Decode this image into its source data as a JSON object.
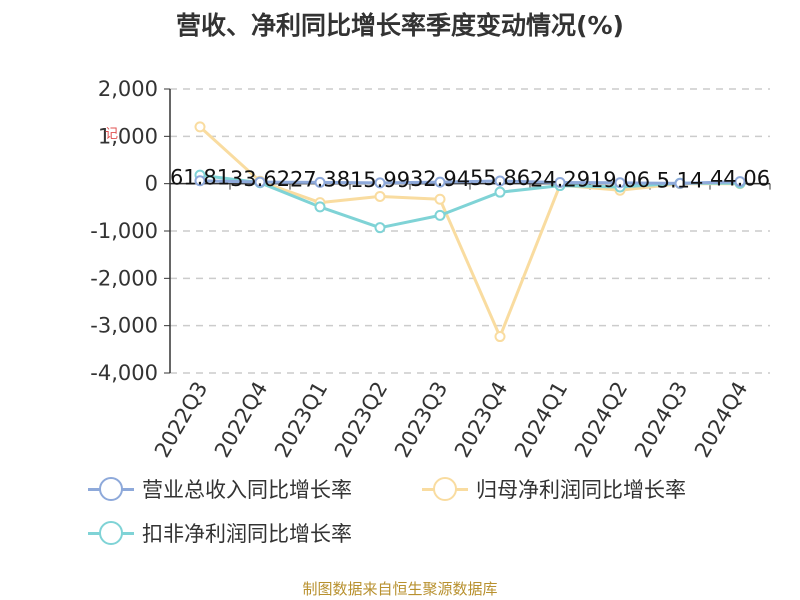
{
  "title": "营收、净利同比增长率季度变动情况(%)",
  "source": "制图数据来自恒生聚源数据库",
  "colors": {
    "revenue": "#8ea9da",
    "net_profit": "#f9dca0",
    "deducted_net_profit": "#7fd3d6",
    "grid": "#cccccc",
    "axis": "#333333"
  },
  "chart_data": {
    "type": "line",
    "categories": [
      "2022Q3",
      "2022Q4",
      "2023Q1",
      "2023Q2",
      "2023Q3",
      "2023Q4",
      "2024Q1",
      "2024Q2",
      "2024Q3",
      "2024Q4"
    ],
    "ylim": [
      -4000,
      2000
    ],
    "yticks": [
      2000,
      1000,
      0,
      -1000,
      -2000,
      -3000,
      -4000
    ],
    "ytick_labels": [
      "2,000",
      "1,000",
      "0",
      "-1,000",
      "-2,000",
      "-3,000",
      "-4,000"
    ],
    "grid": true,
    "legend_position": "bottom",
    "series": [
      {
        "name": "营业总收入同比增长率",
        "values": [
          61.81,
          33.62,
          27.38,
          15.99,
          32.94,
          55.86,
          24.29,
          19.06,
          5.14,
          44.06
        ],
        "labels": [
          "61.81",
          "33.62",
          "27.38",
          "15.99",
          "32.94",
          "55.86",
          "24.29",
          "19.06",
          "5.14",
          "44.06"
        ]
      },
      {
        "name": "归母净利润同比增长率",
        "values": [
          1200,
          50,
          -400,
          -270,
          -330,
          -3230,
          -30,
          -140,
          0,
          0
        ]
      },
      {
        "name": "扣非净利润同比增长率",
        "values": [
          180,
          20,
          -490,
          -930,
          -670,
          -180,
          -40,
          -70,
          10,
          10
        ]
      }
    ],
    "annotations": [
      "记"
    ]
  }
}
